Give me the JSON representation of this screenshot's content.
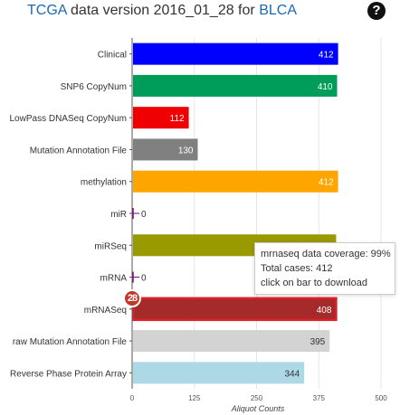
{
  "header": {
    "title_prefix": "TCGA",
    "title_middle": "data version 2016_01_28 for",
    "title_disease": "BLCA",
    "help_glyph": "?",
    "help_icon": "question-circle-icon"
  },
  "tooltip": {
    "line1": "mrnaseq data coverage: 99%",
    "line2": "Total cases: 412",
    "line3": "click on bar to download"
  },
  "badge": {
    "text": "28"
  },
  "chart_data": {
    "type": "bar",
    "orientation": "horizontal",
    "categories": [
      "Clinical",
      "SNP6 CopyNum",
      "LowPass DNASeq CopyNum",
      "Mutation Annotation File",
      "methylation",
      "miR",
      "miRSeq",
      "mRNA",
      "mRNASeq",
      "raw Mutation Annotation File",
      "Reverse Phase Protein Array"
    ],
    "values": [
      412,
      410,
      112,
      130,
      412,
      0,
      408,
      0,
      408,
      395,
      344
    ],
    "colors": [
      "#0000ff",
      "#009c5a",
      "#f00000",
      "#808080",
      "#ffa500",
      "#800080",
      "#999900",
      "#800080",
      "#a52a2a",
      "#d3d3d3",
      "#add8e6"
    ],
    "label_colors": [
      "#ffffff",
      "#ffffff",
      "#ffffff",
      "#ffffff",
      "#ffffff",
      "#333333",
      "#ffffff",
      "#333333",
      "#ffffff",
      "#333333",
      "#333333"
    ],
    "highlighted_category": "mRNASeq",
    "xlabel": "Aliquot Counts",
    "xlim": [
      0,
      500
    ],
    "xticks": [
      0,
      125,
      250,
      375,
      500
    ],
    "grid": true
  }
}
